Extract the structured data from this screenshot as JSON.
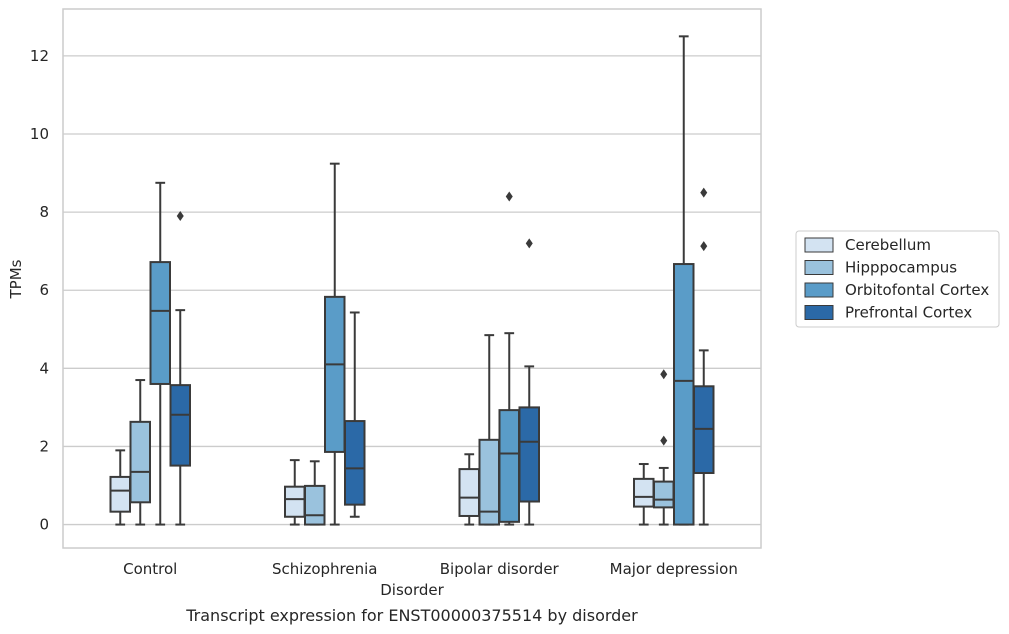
{
  "caption": "Transcript expression for ENST00000375514 by disorder",
  "chart_data": {
    "type": "box",
    "xlabel": "Disorder",
    "ylabel": "TPMs",
    "ylim": [
      -0.6,
      13.2
    ],
    "yticks": [
      0,
      2,
      4,
      6,
      8,
      10,
      12
    ],
    "grid": "horizontal",
    "legend_position": "right",
    "categories": [
      "Control",
      "Schizophrenia",
      "Bipolar disorder",
      "Major depression"
    ],
    "series": [
      {
        "name": "Cerebellum",
        "color": "#d3e3f2",
        "boxes": [
          {
            "whisker_low": 0,
            "q1": 0.33,
            "median": 0.87,
            "q3": 1.22,
            "whisker_high": 1.9,
            "outliers": []
          },
          {
            "whisker_low": 0,
            "q1": 0.2,
            "median": 0.65,
            "q3": 0.97,
            "whisker_high": 1.65,
            "outliers": []
          },
          {
            "whisker_low": 0,
            "q1": 0.22,
            "median": 0.69,
            "q3": 1.42,
            "whisker_high": 1.8,
            "outliers": []
          },
          {
            "whisker_low": 0,
            "q1": 0.46,
            "median": 0.71,
            "q3": 1.17,
            "whisker_high": 1.55,
            "outliers": []
          }
        ]
      },
      {
        "name": "Hipppocampus",
        "color": "#9ac2dd",
        "boxes": [
          {
            "whisker_low": 0,
            "q1": 0.57,
            "median": 1.35,
            "q3": 2.63,
            "whisker_high": 3.7,
            "outliers": []
          },
          {
            "whisker_low": 0,
            "q1": 0.0,
            "median": 0.24,
            "q3": 0.99,
            "whisker_high": 1.62,
            "outliers": []
          },
          {
            "whisker_low": 0,
            "q1": 0.0,
            "median": 0.33,
            "q3": 2.17,
            "whisker_high": 4.85,
            "outliers": []
          },
          {
            "whisker_low": 0,
            "q1": 0.44,
            "median": 0.64,
            "q3": 1.1,
            "whisker_high": 1.45,
            "outliers": [
              2.15,
              3.85
            ]
          }
        ]
      },
      {
        "name": "Orbitofontal Cortex",
        "color": "#5a9cc8",
        "boxes": [
          {
            "whisker_low": 0,
            "q1": 3.6,
            "median": 5.47,
            "q3": 6.72,
            "whisker_high": 8.75,
            "outliers": []
          },
          {
            "whisker_low": 0,
            "q1": 1.86,
            "median": 4.1,
            "q3": 5.83,
            "whisker_high": 9.24,
            "outliers": []
          },
          {
            "whisker_low": 0,
            "q1": 0.07,
            "median": 1.82,
            "q3": 2.93,
            "whisker_high": 4.9,
            "outliers": [
              8.4
            ]
          },
          {
            "whisker_low": 0,
            "q1": 0.0,
            "median": 3.68,
            "q3": 6.67,
            "whisker_high": 12.5,
            "outliers": []
          }
        ]
      },
      {
        "name": "Prefrontal Cortex",
        "color": "#2b69a7",
        "boxes": [
          {
            "whisker_low": 0,
            "q1": 1.51,
            "median": 2.81,
            "q3": 3.57,
            "whisker_high": 5.49,
            "outliers": [
              7.9
            ]
          },
          {
            "whisker_low": 0.2,
            "q1": 0.51,
            "median": 1.44,
            "q3": 2.65,
            "whisker_high": 5.43,
            "outliers": []
          },
          {
            "whisker_low": 0,
            "q1": 0.59,
            "median": 2.12,
            "q3": 3.0,
            "whisker_high": 4.05,
            "outliers": [
              7.2
            ]
          },
          {
            "whisker_low": 0,
            "q1": 1.32,
            "median": 2.45,
            "q3": 3.54,
            "whisker_high": 4.46,
            "outliers": [
              7.13,
              8.5
            ]
          }
        ]
      }
    ]
  }
}
